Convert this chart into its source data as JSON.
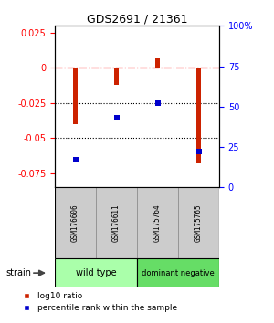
{
  "title": "GDS2691 / 21361",
  "samples": [
    "GSM176606",
    "GSM176611",
    "GSM175764",
    "GSM175765"
  ],
  "log10_ratio": [
    -0.04,
    -0.012,
    0.007,
    -0.068
  ],
  "percentile_rank": [
    17,
    43,
    52,
    22
  ],
  "ylim_left": [
    -0.085,
    0.03
  ],
  "ylim_right": [
    0,
    100
  ],
  "yticks_left": [
    0.025,
    0,
    -0.025,
    -0.05,
    -0.075
  ],
  "yticks_right": [
    100,
    75,
    50,
    25,
    0
  ],
  "dotted_lines": [
    -0.025,
    -0.05
  ],
  "bar_color": "#cc2200",
  "dot_color": "#0000cc",
  "bar_width": 0.12,
  "groups": [
    {
      "label": "wild type",
      "indices": [
        0,
        1
      ],
      "color": "#aaffaa"
    },
    {
      "label": "dominant negative",
      "indices": [
        2,
        3
      ],
      "color": "#66dd66"
    }
  ],
  "strain_label": "strain",
  "legend_bar_label": "log10 ratio",
  "legend_dot_label": "percentile rank within the sample",
  "background_color": "#ffffff"
}
